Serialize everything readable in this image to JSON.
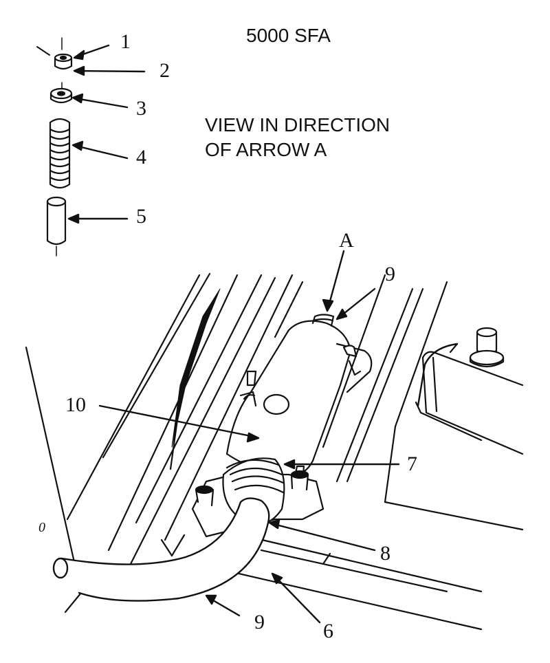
{
  "title": "5000 SFA",
  "view_note": {
    "line1": "VIEW IN DIRECTION",
    "line2": "OF ARROW A"
  },
  "arrow_label": "A",
  "callouts": {
    "c1": "1",
    "c2": "2",
    "c3": "3",
    "c4": "4",
    "c5": "5",
    "c6": "6",
    "c7": "7",
    "c8": "8",
    "c9_top": "9",
    "c9_bottom": "9",
    "c10": "10",
    "c0": "0"
  }
}
